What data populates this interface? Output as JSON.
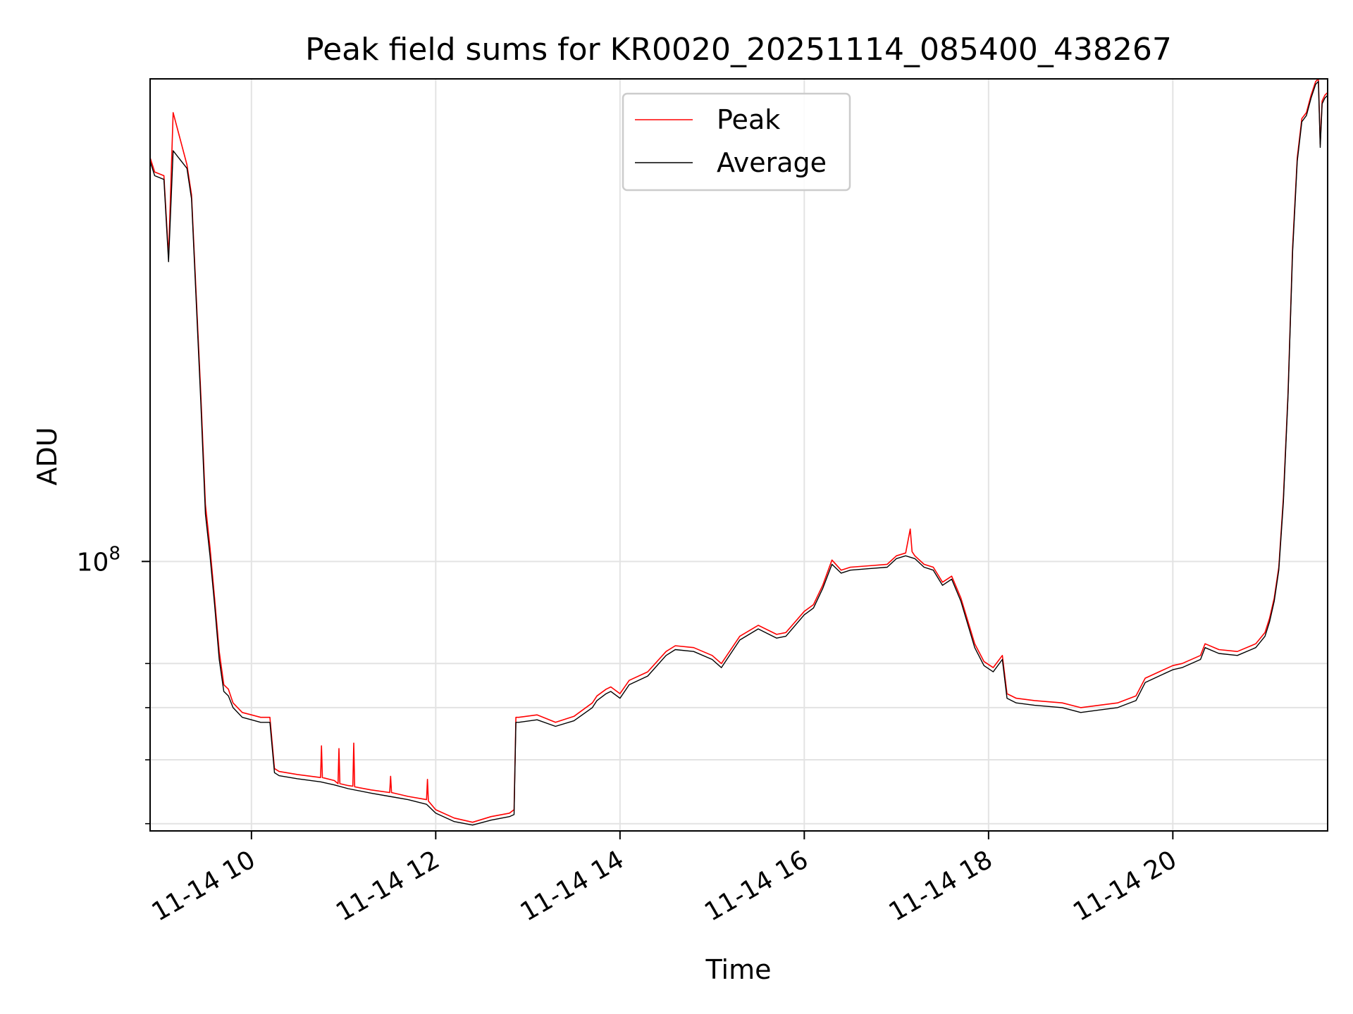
{
  "chart_data": {
    "type": "line",
    "title": "Peak field sums for KR0020_20251114_085400_438267",
    "xlabel": "Time",
    "ylabel": "ADU",
    "yscale": "log",
    "grid": true,
    "legend_position": "top-center",
    "x_unit": "hour of day 2025-11-14",
    "xlim": [
      8.9,
      21.68
    ],
    "ylim": [
      39000000,
      540000000
    ],
    "x_ticks": [
      {
        "value": 10,
        "label": "11-14 10"
      },
      {
        "value": 12,
        "label": "11-14 12"
      },
      {
        "value": 14,
        "label": "11-14 14"
      },
      {
        "value": 16,
        "label": "11-14 16"
      },
      {
        "value": 18,
        "label": "11-14 18"
      },
      {
        "value": 20,
        "label": "11-14 20"
      }
    ],
    "y_major_ticks": [
      {
        "value": 100000000,
        "label_base": "10",
        "label_exp": "8"
      }
    ],
    "y_minor_ticks": [
      40000000,
      50000000,
      60000000,
      70000000
    ],
    "series": [
      {
        "name": "Peak",
        "color": "#ff0000",
        "x": [
          8.9,
          8.95,
          9.05,
          9.1,
          9.15,
          9.3,
          9.35,
          9.45,
          9.5,
          9.55,
          9.6,
          9.65,
          9.7,
          9.75,
          9.8,
          9.9,
          10.0,
          10.1,
          10.2,
          10.25,
          10.3,
          10.5,
          10.75,
          10.76,
          10.77,
          10.9,
          10.94,
          10.95,
          10.96,
          11.05,
          11.1,
          11.11,
          11.12,
          11.3,
          11.5,
          11.51,
          11.52,
          11.7,
          11.9,
          11.91,
          11.92,
          12.0,
          12.2,
          12.4,
          12.6,
          12.8,
          12.85,
          12.87,
          12.9,
          13.1,
          13.3,
          13.5,
          13.7,
          13.75,
          13.85,
          13.9,
          14.0,
          14.1,
          14.3,
          14.5,
          14.6,
          14.8,
          15.0,
          15.1,
          15.3,
          15.5,
          15.7,
          15.8,
          16.0,
          16.1,
          16.2,
          16.3,
          16.4,
          16.5,
          16.7,
          16.9,
          17.0,
          17.1,
          17.15,
          17.17,
          17.2,
          17.3,
          17.4,
          17.5,
          17.6,
          17.7,
          17.85,
          17.95,
          18.05,
          18.15,
          18.2,
          18.3,
          18.5,
          18.8,
          19.0,
          19.2,
          19.4,
          19.6,
          19.7,
          19.85,
          20.0,
          20.1,
          20.3,
          20.35,
          20.5,
          20.7,
          20.9,
          21.0,
          21.05,
          21.1,
          21.15,
          21.2,
          21.25,
          21.3,
          21.35,
          21.4,
          21.45,
          21.5,
          21.55,
          21.58,
          21.6,
          21.62,
          21.65,
          21.68
        ],
        "y": [
          410000000,
          390000000,
          385000000,
          290000000,
          480000000,
          400000000,
          360000000,
          180000000,
          122000000,
          105000000,
          88000000,
          73000000,
          65000000,
          64000000,
          61000000,
          59000000,
          58500000,
          58000000,
          58000000,
          48500000,
          48000000,
          47500000,
          47000000,
          52500000,
          47000000,
          46500000,
          46000000,
          52000000,
          46000000,
          45700000,
          45600000,
          53000000,
          45500000,
          45000000,
          44600000,
          47200000,
          44600000,
          44000000,
          43500000,
          46700000,
          43300000,
          42000000,
          40800000,
          40200000,
          41000000,
          41500000,
          42000000,
          58000000,
          58000000,
          58500000,
          57000000,
          58200000,
          61000000,
          62500000,
          64000000,
          64500000,
          63000000,
          66000000,
          68000000,
          73000000,
          74500000,
          74000000,
          72000000,
          70000000,
          77000000,
          80000000,
          77500000,
          78000000,
          84000000,
          86000000,
          92000000,
          100500000,
          97000000,
          98000000,
          98500000,
          99000000,
          102000000,
          103000000,
          112000000,
          103500000,
          102000000,
          99000000,
          98000000,
          93000000,
          95000000,
          88000000,
          75000000,
          70500000,
          69000000,
          72000000,
          63000000,
          62000000,
          61500000,
          61000000,
          60000000,
          60500000,
          61000000,
          62500000,
          66500000,
          68000000,
          69500000,
          70000000,
          72000000,
          75000000,
          73500000,
          73000000,
          75000000,
          78000000,
          82000000,
          88000000,
          98000000,
          125000000,
          180000000,
          300000000,
          410000000,
          470000000,
          480000000,
          510000000,
          535000000,
          540000000,
          430000000,
          500000000,
          510000000,
          515000000
        ]
      },
      {
        "name": "Average",
        "color": "#000000",
        "x": [
          8.9,
          8.95,
          9.05,
          9.1,
          9.15,
          9.3,
          9.35,
          9.45,
          9.5,
          9.55,
          9.6,
          9.65,
          9.7,
          9.75,
          9.8,
          9.9,
          10.0,
          10.1,
          10.2,
          10.25,
          10.3,
          10.5,
          10.75,
          10.9,
          11.05,
          11.3,
          11.5,
          11.7,
          11.9,
          12.0,
          12.2,
          12.4,
          12.6,
          12.8,
          12.85,
          12.87,
          12.9,
          13.1,
          13.3,
          13.5,
          13.7,
          13.75,
          13.85,
          13.9,
          14.0,
          14.1,
          14.3,
          14.5,
          14.6,
          14.8,
          15.0,
          15.1,
          15.3,
          15.5,
          15.7,
          15.8,
          16.0,
          16.1,
          16.2,
          16.3,
          16.4,
          16.5,
          16.7,
          16.9,
          17.0,
          17.1,
          17.2,
          17.3,
          17.4,
          17.5,
          17.6,
          17.7,
          17.85,
          17.95,
          18.05,
          18.15,
          18.2,
          18.3,
          18.5,
          18.8,
          19.0,
          19.2,
          19.4,
          19.6,
          19.7,
          19.85,
          20.0,
          20.1,
          20.3,
          20.35,
          20.5,
          20.7,
          20.9,
          21.0,
          21.05,
          21.1,
          21.15,
          21.2,
          21.25,
          21.3,
          21.35,
          21.4,
          21.45,
          21.5,
          21.55,
          21.58,
          21.6,
          21.62,
          21.65,
          21.68
        ],
        "y": [
          405000000,
          385000000,
          380000000,
          285000000,
          420000000,
          395000000,
          355000000,
          175000000,
          118000000,
          102000000,
          86000000,
          71000000,
          63500000,
          62500000,
          60000000,
          58000000,
          57500000,
          57000000,
          57000000,
          47800000,
          47300000,
          46800000,
          46300000,
          45800000,
          45200000,
          44500000,
          44000000,
          43500000,
          42800000,
          41500000,
          40300000,
          39800000,
          40500000,
          41000000,
          41300000,
          57000000,
          57000000,
          57500000,
          56200000,
          57300000,
          60000000,
          61500000,
          63000000,
          63500000,
          62000000,
          65000000,
          67000000,
          72000000,
          73500000,
          73000000,
          71000000,
          69000000,
          76000000,
          79000000,
          76500000,
          77000000,
          83000000,
          85000000,
          91000000,
          99000000,
          96000000,
          97000000,
          97500000,
          98000000,
          101000000,
          102000000,
          101000000,
          98000000,
          97000000,
          92000000,
          94000000,
          87000000,
          74000000,
          69500000,
          68000000,
          71000000,
          62000000,
          61000000,
          60500000,
          60000000,
          59000000,
          59500000,
          60000000,
          61500000,
          65500000,
          67000000,
          68500000,
          69000000,
          71000000,
          74000000,
          72500000,
          72000000,
          74000000,
          77000000,
          81000000,
          87000000,
          97000000,
          123000000,
          178000000,
          295000000,
          405000000,
          465000000,
          475000000,
          505000000,
          530000000,
          535000000,
          425000000,
          495000000,
          505000000,
          510000000
        ]
      }
    ]
  }
}
